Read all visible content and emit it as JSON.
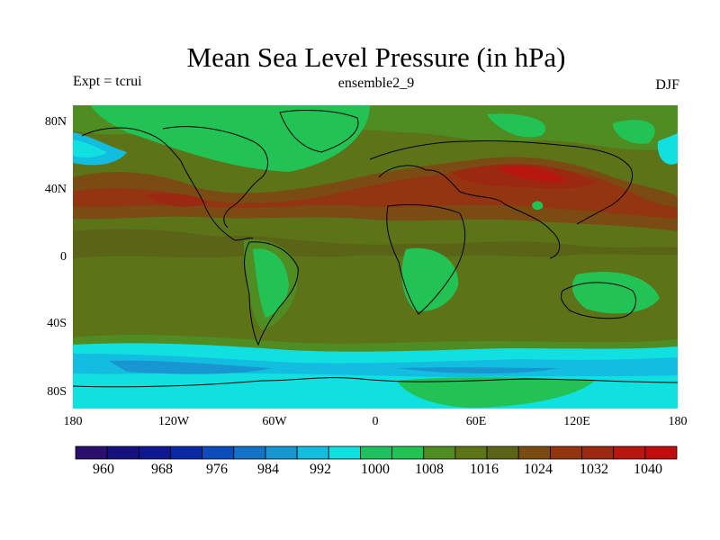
{
  "title": "Mean Sea Level Pressure (in hPa)",
  "subtitle_left": "Expt = tcrui",
  "subtitle_center": "ensemble2_9",
  "subtitle_right": "DJF",
  "lat_ticks": [
    "80N",
    "40N",
    "0",
    "40S",
    "80S"
  ],
  "lon_ticks": [
    "180",
    "120W",
    "60W",
    "0",
    "60E",
    "120E",
    "180"
  ],
  "colorbar": {
    "labels": [
      "960",
      "968",
      "976",
      "984",
      "992",
      "1000",
      "1008",
      "1016",
      "1024",
      "1032",
      "1040"
    ],
    "colors": [
      "#2a0f6e",
      "#15117f",
      "#0f1890",
      "#0a2aa5",
      "#0d4cbc",
      "#1572c6",
      "#1896d2",
      "#12bde0",
      "#10e0e0",
      "#1fc060",
      "#22c255",
      "#4f8d23",
      "#5c7318",
      "#5a6416",
      "#7a4b12",
      "#943511",
      "#9b2810",
      "#b81710",
      "#c00c0c"
    ]
  },
  "icons": [
    "land-outline-icon"
  ]
}
